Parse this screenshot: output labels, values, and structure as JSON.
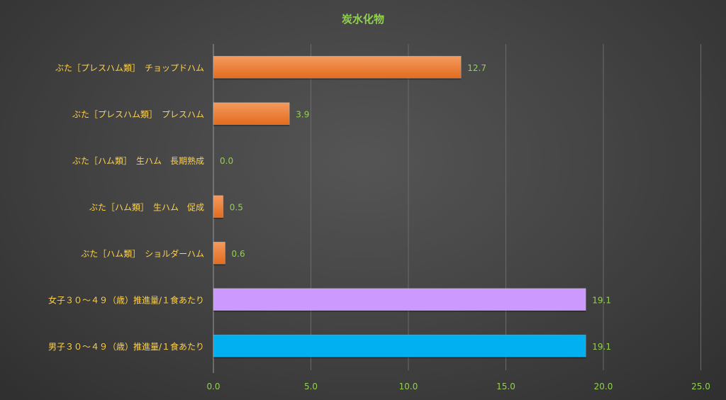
{
  "chart_data": {
    "type": "bar",
    "orientation": "horizontal",
    "title": "炭水化物",
    "categories": [
      "ぶた［プレスハム類］　チョップドハム",
      "ぶた［プレスハム類］　プレスハム",
      "ぶた［ハム類］　生ハム　長期熟成",
      "ぶた［ハム類］　生ハム　促成",
      "ぶた［ハム類］　ショルダーハム",
      "女子３０～４９（歳）推進量/１食あたり",
      "男子３０～４９（歳）推進量/１食あたり"
    ],
    "values": [
      12.7,
      3.9,
      0.0,
      0.5,
      0.6,
      19.1,
      19.1
    ],
    "value_labels": [
      "12.7",
      "3.9",
      "0.0",
      "0.5",
      "0.6",
      "19.1",
      "19.1"
    ],
    "bar_colors": [
      "#ED7D31",
      "#ED7D31",
      "#ED7D31",
      "#ED7D31",
      "#ED7D31",
      "#CC99FF",
      "#00B0F0"
    ],
    "xlim": [
      0,
      25
    ],
    "xticks": [
      "0.0",
      "5.0",
      "10.0",
      "15.0",
      "20.0",
      "25.0"
    ],
    "xtick_values": [
      0,
      5,
      10,
      15,
      20,
      25
    ],
    "grid": "vertical",
    "legend": "none",
    "colors": {
      "title": "#92D050",
      "category_label": "#FFD24A",
      "value_label": "#92D050",
      "tick_label": "#92D050",
      "gridline": "#6a6a6a",
      "axis": "#9a9a9a"
    }
  }
}
